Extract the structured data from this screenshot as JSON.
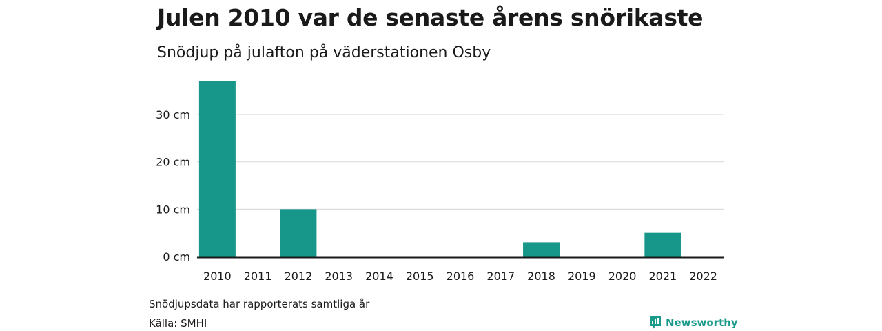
{
  "title": "Julen 2010 var de senaste årens snörikaste",
  "subtitle": "Snödjup på julafton på väderstationen Osby",
  "footer": {
    "note": "Snödjupsdata har rapporterats samtliga år",
    "source": "Källa: SMHI",
    "brand": "Newsworthy",
    "brand_icon": "newsworthy-logo-icon"
  },
  "colors": {
    "bar": "#17978a",
    "grid": "#dddddd",
    "axis": "#1a1a1a",
    "brand": "#1a9a8a"
  },
  "chart_data": {
    "type": "bar",
    "title": "Julen 2010 var de senaste årens snörikaste",
    "subtitle": "Snödjup på julafton på väderstationen Osby",
    "xlabel": "",
    "ylabel": "",
    "ylim": [
      0,
      37
    ],
    "yticks": [
      0,
      10,
      20,
      30
    ],
    "ytick_labels": [
      "0 cm",
      "10 cm",
      "20 cm",
      "30 cm"
    ],
    "grid": true,
    "categories": [
      "2010",
      "2011",
      "2012",
      "2013",
      "2014",
      "2015",
      "2016",
      "2017",
      "2018",
      "2019",
      "2020",
      "2021",
      "2022"
    ],
    "values": [
      37,
      0,
      10,
      0,
      0,
      0,
      0,
      0,
      3,
      0,
      0,
      5,
      0
    ]
  }
}
